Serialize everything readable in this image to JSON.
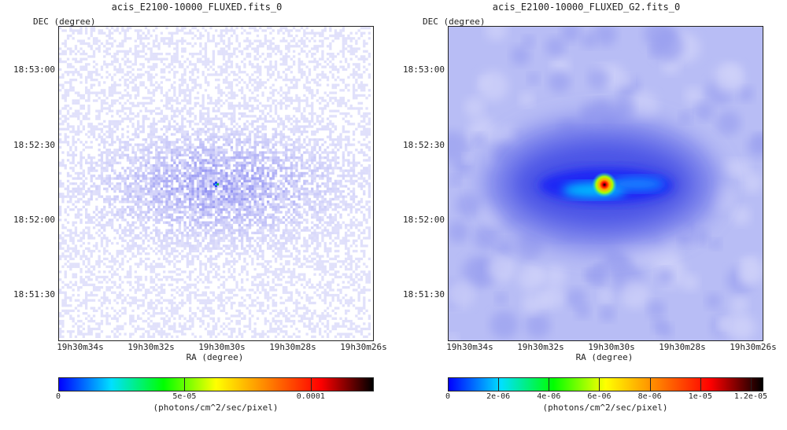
{
  "chart_data": [
    {
      "type": "heatmap",
      "title": "acis_E2100-10000_FLUXED.fits_0",
      "ylabel": "DEC (degree)",
      "xlabel": "RA (degree)",
      "x_ticks": [
        "19h30m34s",
        "19h30m32s",
        "19h30m30s",
        "19h30m28s",
        "19h30m26s"
      ],
      "y_ticks": [
        "18:53:00",
        "18:52:30",
        "18:52:00",
        "18:51:30"
      ],
      "colorbar": {
        "ticks": [
          "0",
          "5e-05",
          "0.0001"
        ],
        "tick_values": [
          0,
          5e-05,
          0.0001
        ],
        "max": 0.000125,
        "unit": "(photons/cm^2/sec/pixel)"
      },
      "colors": [
        "#0000ff",
        "#00e0ff",
        "#00ff00",
        "#ffff00",
        "#ff8000",
        "#ff0000",
        "#000000"
      ]
    },
    {
      "type": "heatmap",
      "title": "acis_E2100-10000_FLUXED_G2.fits_0",
      "ylabel": "DEC (degree)",
      "xlabel": "RA (degree)",
      "x_ticks": [
        "19h30m34s",
        "19h30m32s",
        "19h30m30s",
        "19h30m28s",
        "19h30m26s"
      ],
      "y_ticks": [
        "18:53:00",
        "18:52:30",
        "18:52:00",
        "18:51:30"
      ],
      "colorbar": {
        "ticks": [
          "0",
          "2e-06",
          "4e-06",
          "6e-06",
          "8e-06",
          "1e-05",
          "1.2e-05"
        ],
        "tick_values": [
          0,
          2e-06,
          4e-06,
          6e-06,
          8e-06,
          1e-05,
          1.2e-05
        ],
        "max": 1.25e-05,
        "unit": "(photons/cm^2/sec/pixel)"
      },
      "colors": [
        "#0000ff",
        "#00e0ff",
        "#00ff00",
        "#ffff00",
        "#ff8000",
        "#ff0000",
        "#000000"
      ]
    }
  ]
}
